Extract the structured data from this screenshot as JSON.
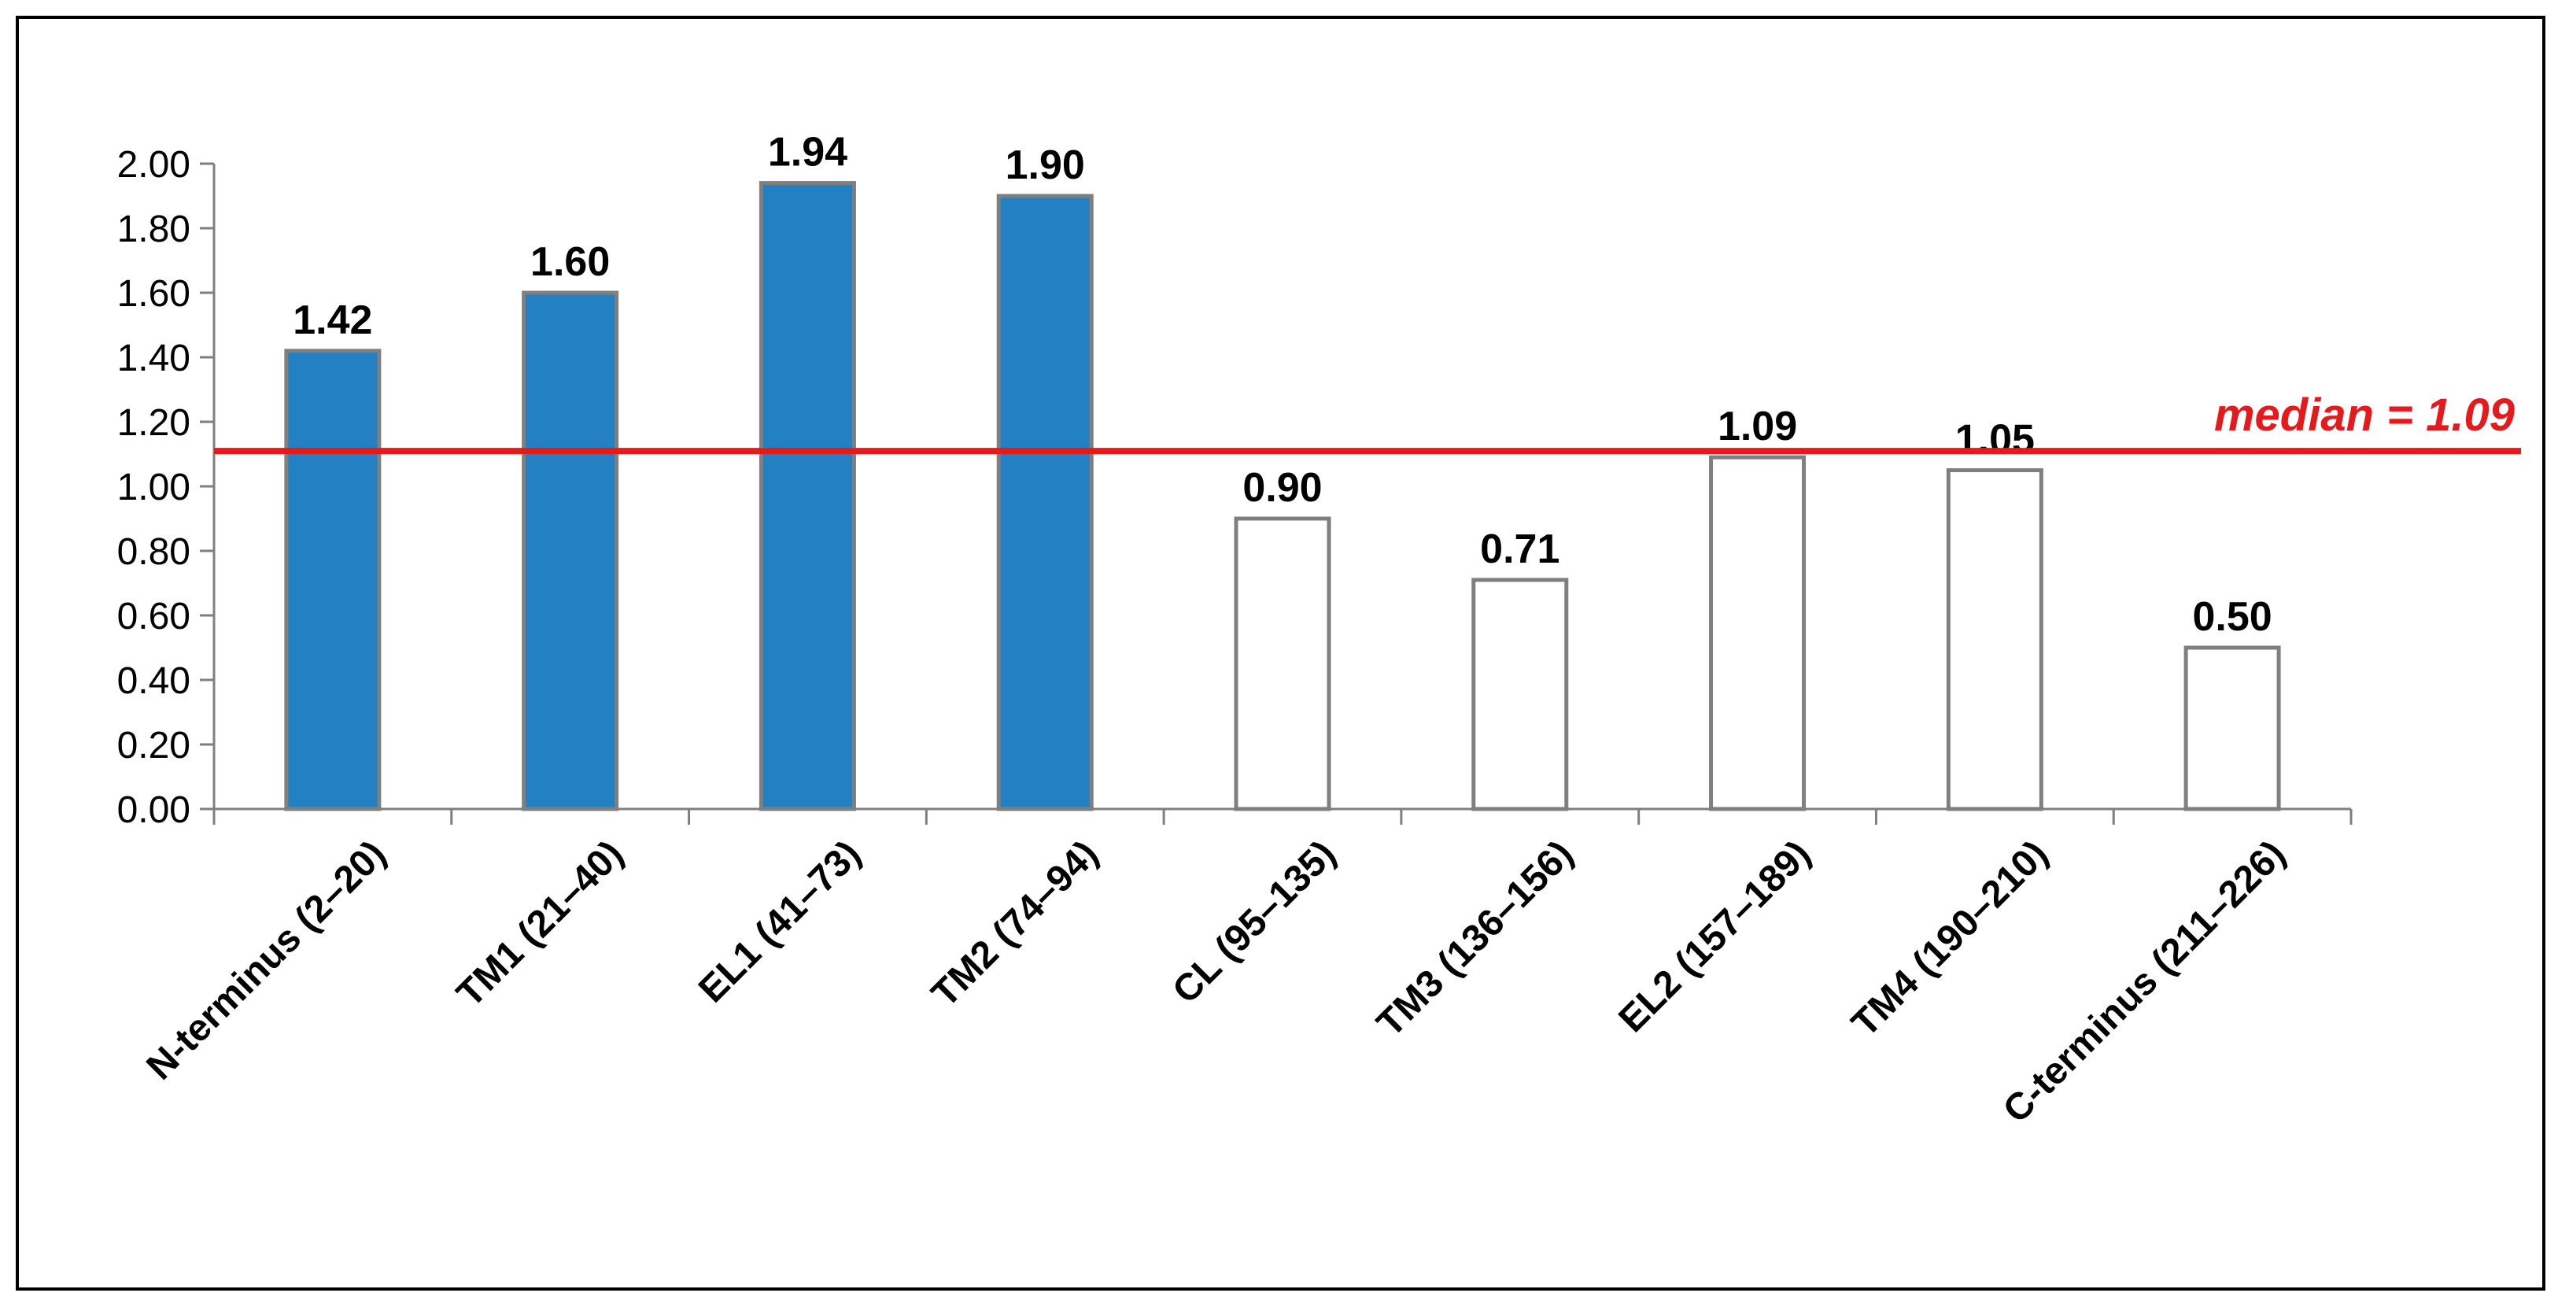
{
  "chart_data": {
    "type": "bar",
    "title": "",
    "xlabel": "",
    "ylabel": "",
    "ylim": [
      0,
      2.0
    ],
    "yticks": [
      "0.00",
      "0.20",
      "0.40",
      "0.60",
      "0.80",
      "1.00",
      "1.20",
      "1.40",
      "1.60",
      "1.80",
      "2.00"
    ],
    "grid": false,
    "categories": [
      "N-terminus (2–20)",
      "TM1 (21–40)",
      "EL1 (41–73)",
      "TM2 (74–94)",
      "CL (95–135)",
      "TM3 (136–156)",
      "EL2 (157–189)",
      "TM4 (190–210)",
      "C-terminus (211–226)"
    ],
    "values": [
      1.42,
      1.6,
      1.94,
      1.9,
      0.9,
      0.71,
      1.09,
      1.05,
      0.5
    ],
    "value_labels": [
      "1.42",
      "1.60",
      "1.94",
      "1.90",
      "0.90",
      "0.71",
      "1.09",
      "1.05",
      "0.50"
    ],
    "filled": [
      true,
      true,
      true,
      true,
      false,
      false,
      false,
      false,
      false
    ],
    "median": 1.09,
    "median_label": "median = 1.09",
    "colors": {
      "bar_fill": "#2380c2",
      "bar_outline": "#7f7f7f",
      "median_line": "#e41a1c",
      "axis": "#7f7f7f"
    }
  }
}
